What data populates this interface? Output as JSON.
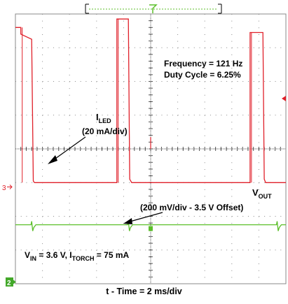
{
  "chart_data": {
    "type": "line",
    "title": "",
    "xlabel": "t - Time = 2 ms/div",
    "ylabel": "",
    "grid": true,
    "x_divisions": 10,
    "y_divisions": 8,
    "x_unit": "ms",
    "x_per_div": 2,
    "xlim": [
      0,
      20
    ],
    "series": [
      {
        "name": "I_LED",
        "label_main": "I",
        "label_sub": "LED",
        "scale": "(20 mA/div)",
        "marker": "3",
        "color": "#e0202a",
        "x": [
          0,
          5.55,
          5.65,
          5.65,
          6.6,
          6.75,
          7.5,
          7.5,
          7.6,
          18.3,
          18.4,
          18.4,
          19.35,
          19.5,
          20
        ],
        "y": [
          3.0,
          3.0,
          3.0,
          7.85,
          7.85,
          3.1,
          3.0,
          3.0,
          3.0,
          3.0,
          3.0,
          7.45,
          7.45,
          3.1,
          3.0
        ],
        "pulses_ms": [
          [
            0.4,
            1.2
          ],
          [
            7.5,
            8.35
          ]
        ]
      },
      {
        "name": "V_OUT",
        "label_main": "V",
        "label_sub": "OUT",
        "scale": "(200 mV/div - 3.5 V Offset)",
        "marker": "2",
        "color": "#5cbf2a",
        "level_div": 1.75,
        "transients_ms": [
          1.2,
          8.35,
          19.35
        ]
      }
    ],
    "annotations": {
      "frequency": "Frequency = 121 Hz",
      "duty_cycle": "Duty Cycle = 6.25%",
      "conditions": {
        "v_main": "V",
        "v_sub": "IN",
        "v_rest": " = 3.6 V, I",
        "i_sub": "TORCH",
        "i_rest": " = 75 mA"
      }
    },
    "colors": {
      "grid": "#8a8a8a",
      "trace1": "#e0202a",
      "trace2": "#5cbf2a",
      "marker2_bg": "#43a82a",
      "trigger": "#5cbf2a"
    }
  }
}
